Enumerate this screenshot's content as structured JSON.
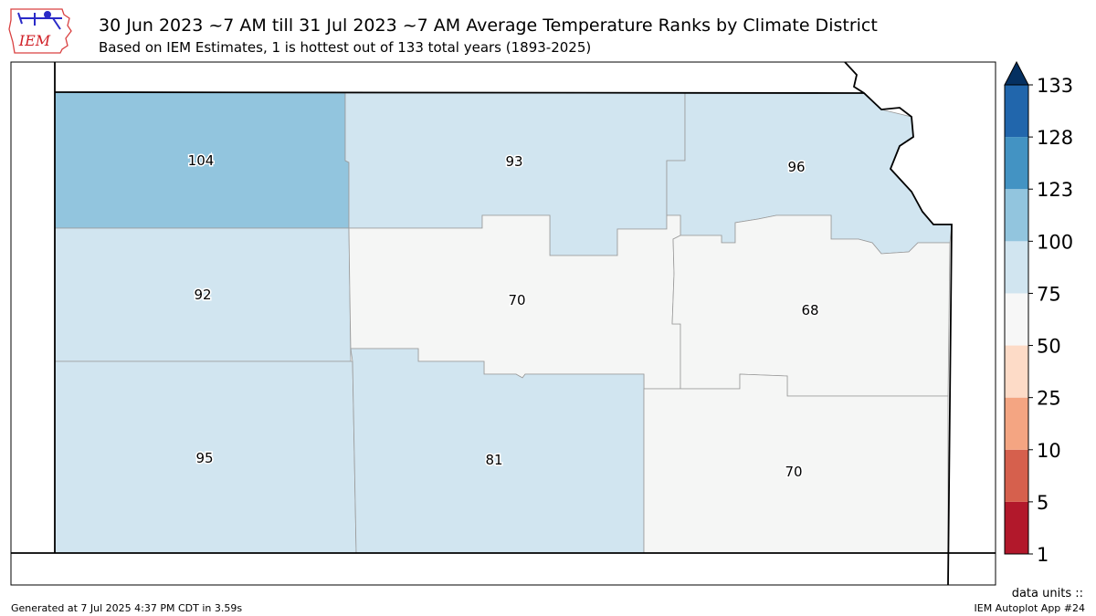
{
  "header": {
    "title": "30 Jun 2023 ~7 AM till 31 Jul 2023 ~7 AM Average Temperature Ranks by Climate District",
    "subtitle": "Based on IEM Estimates, 1 is hottest out of 133 total years (1893-2025)"
  },
  "logo": {
    "text": "IEM",
    "icon": "iem-iowa-logo"
  },
  "districts": [
    {
      "id": "northwest",
      "value": "104",
      "fill": "#92c5de"
    },
    {
      "id": "north-central",
      "value": "93",
      "fill": "#d1e5f0"
    },
    {
      "id": "northeast",
      "value": "96",
      "fill": "#d1e5f0"
    },
    {
      "id": "west-central",
      "value": "92",
      "fill": "#d1e5f0"
    },
    {
      "id": "central",
      "value": "70",
      "fill": "#f5f6f5"
    },
    {
      "id": "east-central",
      "value": "68",
      "fill": "#f5f6f5"
    },
    {
      "id": "southwest",
      "value": "95",
      "fill": "#d1e5f0"
    },
    {
      "id": "south-central",
      "value": "81",
      "fill": "#d1e5f0"
    },
    {
      "id": "southeast",
      "value": "70",
      "fill": "#f5f6f5"
    }
  ],
  "colorbar": {
    "levels": [
      "1",
      "5",
      "10",
      "25",
      "50",
      "75",
      "100",
      "123",
      "128",
      "133"
    ],
    "colors": [
      "#b2182b",
      "#d6604d",
      "#f4a582",
      "#fddbc7",
      "#f7f7f7",
      "#d1e5f0",
      "#92c5de",
      "#4393c3",
      "#2166ac"
    ],
    "extend_color": "#053061"
  },
  "footer": {
    "generated": "Generated at 7 Jul 2025 4:37 PM CDT in 3.59s",
    "units": "data units ::",
    "app": "IEM Autoplot App #24"
  }
}
